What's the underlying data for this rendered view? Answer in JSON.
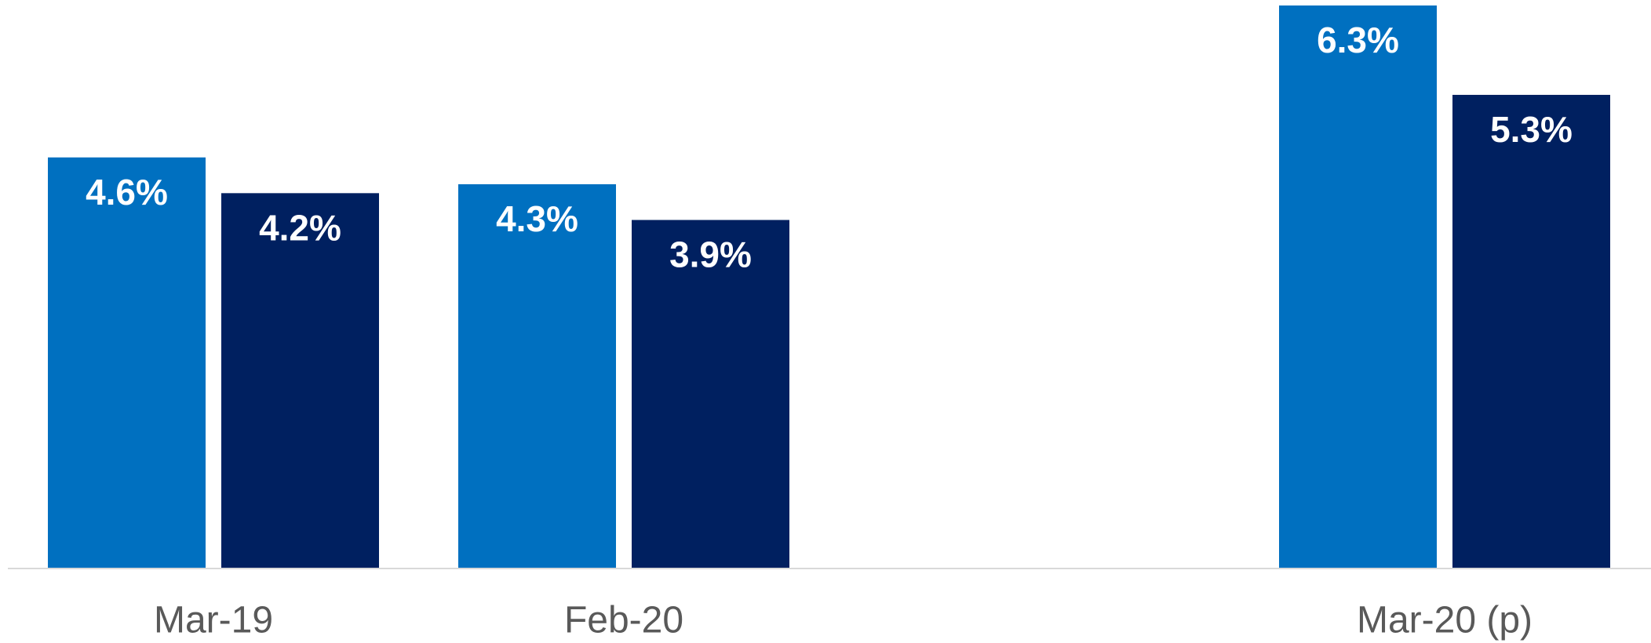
{
  "chart_data": {
    "type": "bar",
    "categories": [
      "Mar-19",
      "Feb-20",
      null,
      "Mar-20 (p)"
    ],
    "series": [
      {
        "color": "#0070c0",
        "values": [
          4.6,
          4.3,
          null,
          6.3
        ],
        "value_labels": [
          "4.6%",
          "4.3%",
          null,
          "6.3%"
        ]
      },
      {
        "color": "#002060",
        "values": [
          4.2,
          3.9,
          null,
          5.3
        ],
        "value_labels": [
          "4.2%",
          "3.9%",
          null,
          "5.3%"
        ]
      }
    ],
    "ylim": [
      0,
      6.3
    ]
  }
}
